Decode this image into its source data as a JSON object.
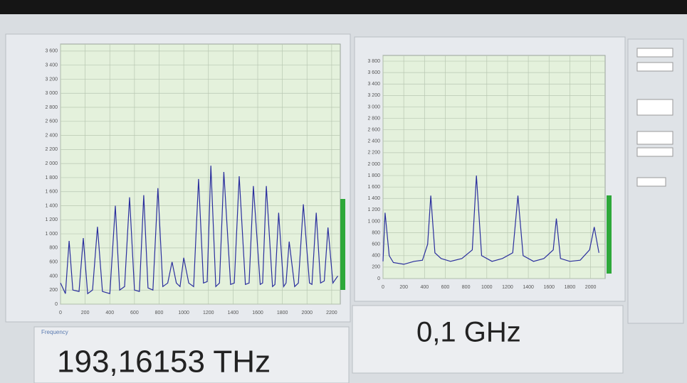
{
  "chart_data": [
    {
      "type": "line",
      "color": "#2b2f9e",
      "grid": true,
      "x": [
        0,
        40,
        70,
        100,
        150,
        185,
        220,
        260,
        300,
        340,
        400,
        445,
        480,
        520,
        560,
        600,
        640,
        675,
        710,
        750,
        790,
        830,
        870,
        905,
        940,
        970,
        1000,
        1040,
        1080,
        1120,
        1160,
        1190,
        1220,
        1260,
        1290,
        1325,
        1380,
        1410,
        1450,
        1500,
        1530,
        1565,
        1620,
        1640,
        1670,
        1720,
        1740,
        1770,
        1810,
        1830,
        1855,
        1900,
        1930,
        1970,
        2020,
        2040,
        2075,
        2110,
        2140,
        2170,
        2210,
        2250
      ],
      "values": [
        300,
        150,
        900,
        200,
        180,
        940,
        150,
        200,
        1100,
        180,
        150,
        1400,
        200,
        250,
        1520,
        200,
        180,
        1550,
        230,
        200,
        1650,
        250,
        300,
        600,
        300,
        250,
        660,
        300,
        250,
        1780,
        300,
        320,
        1970,
        250,
        300,
        1880,
        280,
        300,
        1820,
        280,
        300,
        1680,
        280,
        300,
        1680,
        250,
        280,
        1300,
        250,
        300,
        890,
        250,
        300,
        1420,
        300,
        280,
        1300,
        300,
        330,
        1090,
        300,
        400
      ],
      "xlim": [
        0,
        2270
      ],
      "xticks": [
        0,
        200,
        400,
        600,
        800,
        1000,
        1200,
        1400,
        1600,
        1800,
        2000,
        2200
      ],
      "ylim": [
        0,
        3700
      ],
      "yticks": [
        0,
        200,
        400,
        600,
        800,
        {
          "value": 1000,
          "label": "1 000"
        },
        {
          "value": 1200,
          "label": "1 200"
        },
        {
          "value": 1400,
          "label": "1 400"
        },
        {
          "value": 1600,
          "label": "1 600"
        },
        {
          "value": 1800,
          "label": "1 800"
        },
        {
          "value": 2000,
          "label": "2 000"
        },
        {
          "value": 2200,
          "label": "2 200"
        },
        {
          "value": 2400,
          "label": "2 400"
        },
        {
          "value": 2600,
          "label": "2 600"
        },
        {
          "value": 2800,
          "label": "2 800"
        },
        {
          "value": 3000,
          "label": "3 000"
        },
        {
          "value": 3200,
          "label": "3 200"
        },
        {
          "value": 3400,
          "label": "3 400"
        },
        {
          "value": 3600,
          "label": "3 600"
        }
      ]
    },
    {
      "type": "line",
      "color": "#2b2f9e",
      "grid": true,
      "x": [
        0,
        20,
        60,
        100,
        200,
        300,
        380,
        430,
        460,
        500,
        560,
        650,
        760,
        860,
        900,
        950,
        1050,
        1150,
        1250,
        1300,
        1350,
        1450,
        1550,
        1640,
        1670,
        1710,
        1800,
        1900,
        1990,
        2035,
        2080
      ],
      "values": [
        300,
        1150,
        400,
        280,
        250,
        300,
        320,
        600,
        1450,
        450,
        350,
        300,
        350,
        500,
        1800,
        400,
        300,
        350,
        450,
        1450,
        400,
        300,
        350,
        500,
        1050,
        350,
        300,
        320,
        500,
        900,
        450
      ],
      "xlim": [
        0,
        2140
      ],
      "xticks": [
        0,
        200,
        400,
        600,
        800,
        1000,
        1200,
        1400,
        1600,
        1800,
        2000
      ],
      "ylim": [
        0,
        3900
      ],
      "yticks": [
        0,
        200,
        400,
        600,
        800,
        {
          "value": 1000,
          "label": "1 000"
        },
        {
          "value": 1200,
          "label": "1 200"
        },
        {
          "value": 1400,
          "label": "1 400"
        },
        {
          "value": 1600,
          "label": "1 600"
        },
        {
          "value": 1800,
          "label": "1 800"
        },
        {
          "value": 2000,
          "label": "2 000"
        },
        {
          "value": 2200,
          "label": "2 200"
        },
        {
          "value": 2400,
          "label": "2 400"
        },
        {
          "value": 2600,
          "label": "2 600"
        },
        {
          "value": 2800,
          "label": "2 800"
        },
        {
          "value": 3000,
          "label": "3 000"
        },
        {
          "value": 3200,
          "label": "3 200"
        },
        {
          "value": 3400,
          "label": "3 400"
        },
        {
          "value": 3600,
          "label": "3 600"
        },
        {
          "value": 3800,
          "label": "3 800"
        }
      ]
    }
  ],
  "readouts": {
    "frequency_label": "Frequency",
    "frequency": "193,16153 THz",
    "linewidth": "0,1 GHz"
  }
}
